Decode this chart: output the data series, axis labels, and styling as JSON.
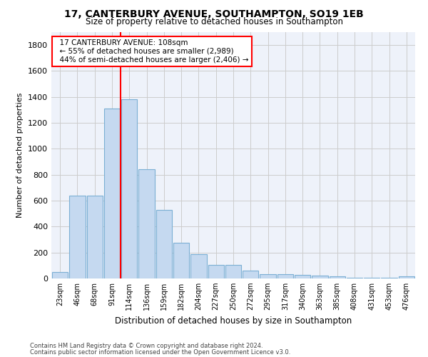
{
  "title": "17, CANTERBURY AVENUE, SOUTHAMPTON, SO19 1EB",
  "subtitle": "Size of property relative to detached houses in Southampton",
  "xlabel": "Distribution of detached houses by size in Southampton",
  "ylabel": "Number of detached properties",
  "bar_labels": [
    "23sqm",
    "46sqm",
    "68sqm",
    "91sqm",
    "114sqm",
    "136sqm",
    "159sqm",
    "182sqm",
    "204sqm",
    "227sqm",
    "250sqm",
    "272sqm",
    "295sqm",
    "317sqm",
    "340sqm",
    "363sqm",
    "385sqm",
    "408sqm",
    "431sqm",
    "453sqm",
    "476sqm"
  ],
  "bar_values": [
    50,
    640,
    640,
    1310,
    1380,
    845,
    530,
    275,
    185,
    105,
    105,
    60,
    35,
    35,
    30,
    20,
    15,
    5,
    5,
    5,
    15
  ],
  "bar_color": "#c5d9f0",
  "bar_edgecolor": "#7bafd4",
  "vline_color": "red",
  "vline_index": 4,
  "annotation_title": "17 CANTERBURY AVENUE: 108sqm",
  "annotation_line1": "← 55% of detached houses are smaller (2,989)",
  "annotation_line2": "44% of semi-detached houses are larger (2,406) →",
  "annotation_box_color": "red",
  "ylim": [
    0,
    1900
  ],
  "yticks": [
    0,
    200,
    400,
    600,
    800,
    1000,
    1200,
    1400,
    1600,
    1800
  ],
  "grid_color": "#cccccc",
  "bg_color": "#eef2fa",
  "footer1": "Contains HM Land Registry data © Crown copyright and database right 2024.",
  "footer2": "Contains public sector information licensed under the Open Government Licence v3.0."
}
